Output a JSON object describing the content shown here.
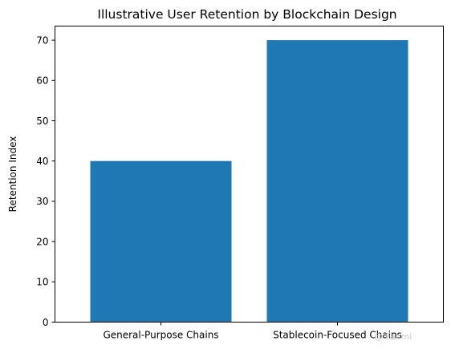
{
  "chart_data": {
    "type": "bar",
    "title": "Illustrative User Retention by Blockchain Design",
    "xlabel": "",
    "ylabel": "Retention Index",
    "categories": [
      "General-Purpose Chains",
      "Stablecoin-Focused Chains"
    ],
    "values": [
      40,
      70
    ],
    "ylim": [
      0,
      73.5
    ],
    "yticks": [
      0,
      10,
      20,
      30,
      40,
      50,
      60,
      70
    ],
    "bar_color": "#1f77b4",
    "grid": false,
    "legend": "none"
  },
  "watermark": "@ Fahmi"
}
